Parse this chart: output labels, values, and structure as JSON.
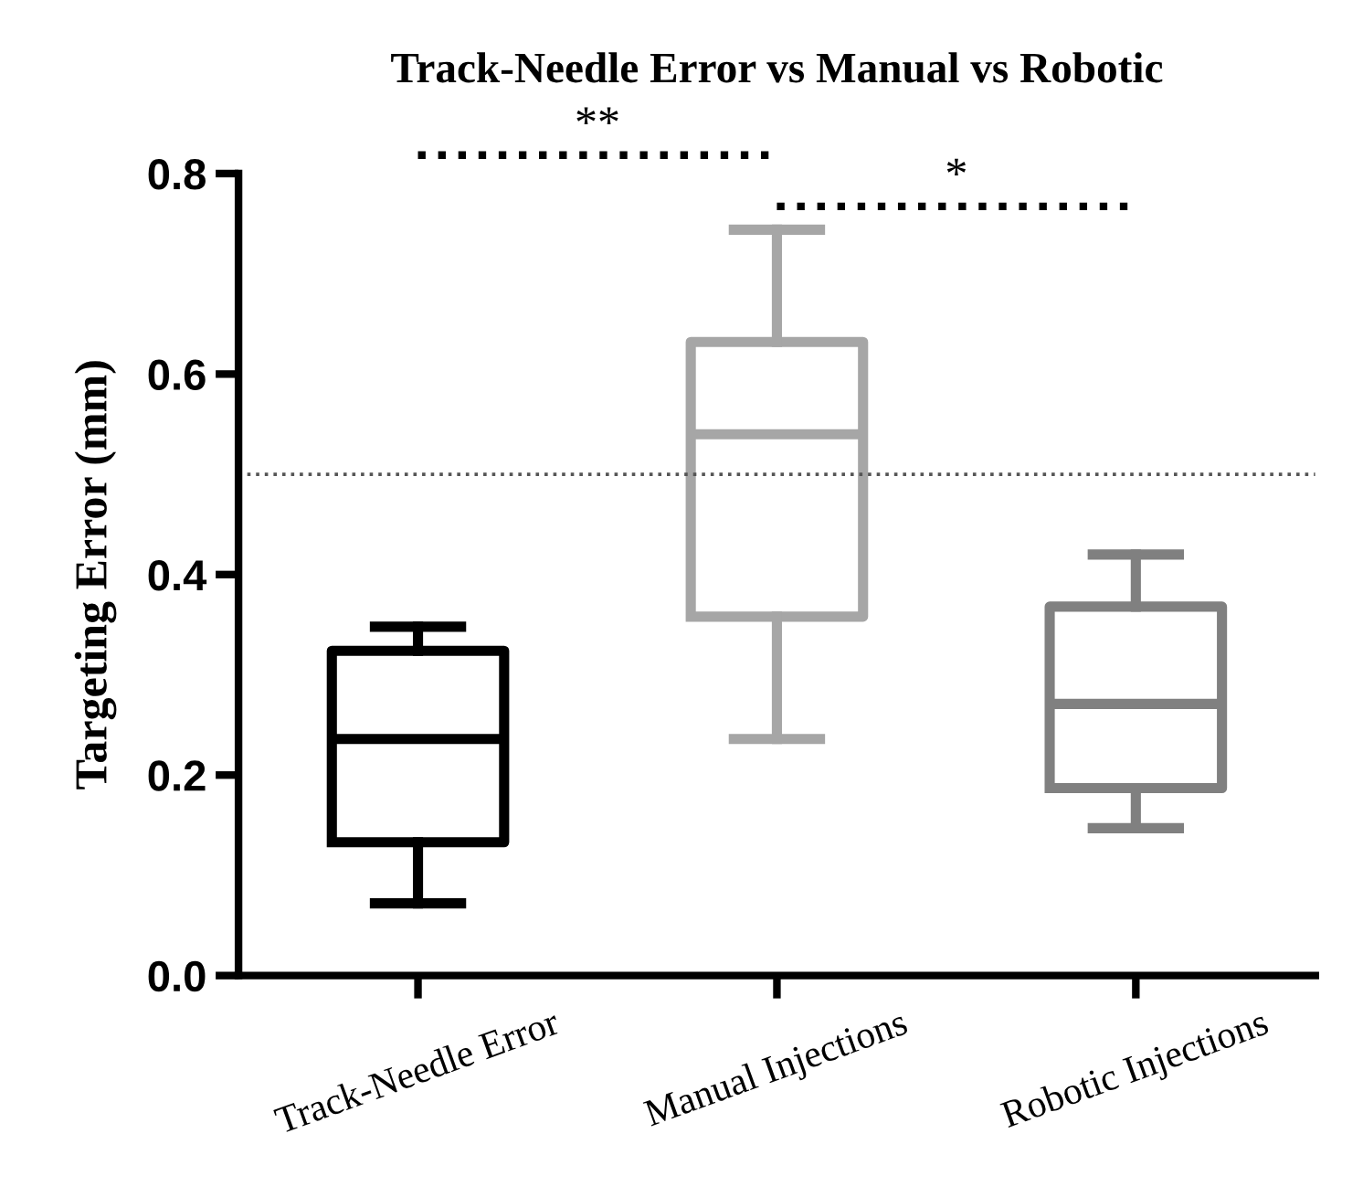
{
  "chart_data": {
    "type": "box",
    "title": "Track-Needle Error vs Manual vs Robotic",
    "ylabel": "Targeting Error (mm)",
    "categories": [
      "Track-Needle Error",
      "Manual Injections",
      "Robotic Injections"
    ],
    "colors": [
      "#000000",
      "#a6a6a6",
      "#808080"
    ],
    "boxes": [
      {
        "low": 0.072,
        "q1": 0.133,
        "median": 0.236,
        "q3": 0.324,
        "high": 0.348
      },
      {
        "low": 0.236,
        "q1": 0.358,
        "median": 0.54,
        "q3": 0.632,
        "high": 0.744
      },
      {
        "low": 0.147,
        "q1": 0.187,
        "median": 0.271,
        "q3": 0.368,
        "high": 0.42
      }
    ],
    "ylim": [
      0,
      0.8
    ],
    "yticks": [
      {
        "value": 0,
        "label": "0.0"
      },
      {
        "value": 0.2,
        "label": "0.2"
      },
      {
        "value": 0.4,
        "label": "0.4"
      },
      {
        "value": 0.6,
        "label": "0.6"
      },
      {
        "value": 0.8,
        "label": "0.8"
      }
    ],
    "ref_lines": [
      {
        "axis": "y",
        "value": 0.5,
        "color": "#555555",
        "line_style": "dotted"
      }
    ],
    "annotations": [
      "**",
      "*"
    ],
    "grid": false,
    "legend": false
  }
}
